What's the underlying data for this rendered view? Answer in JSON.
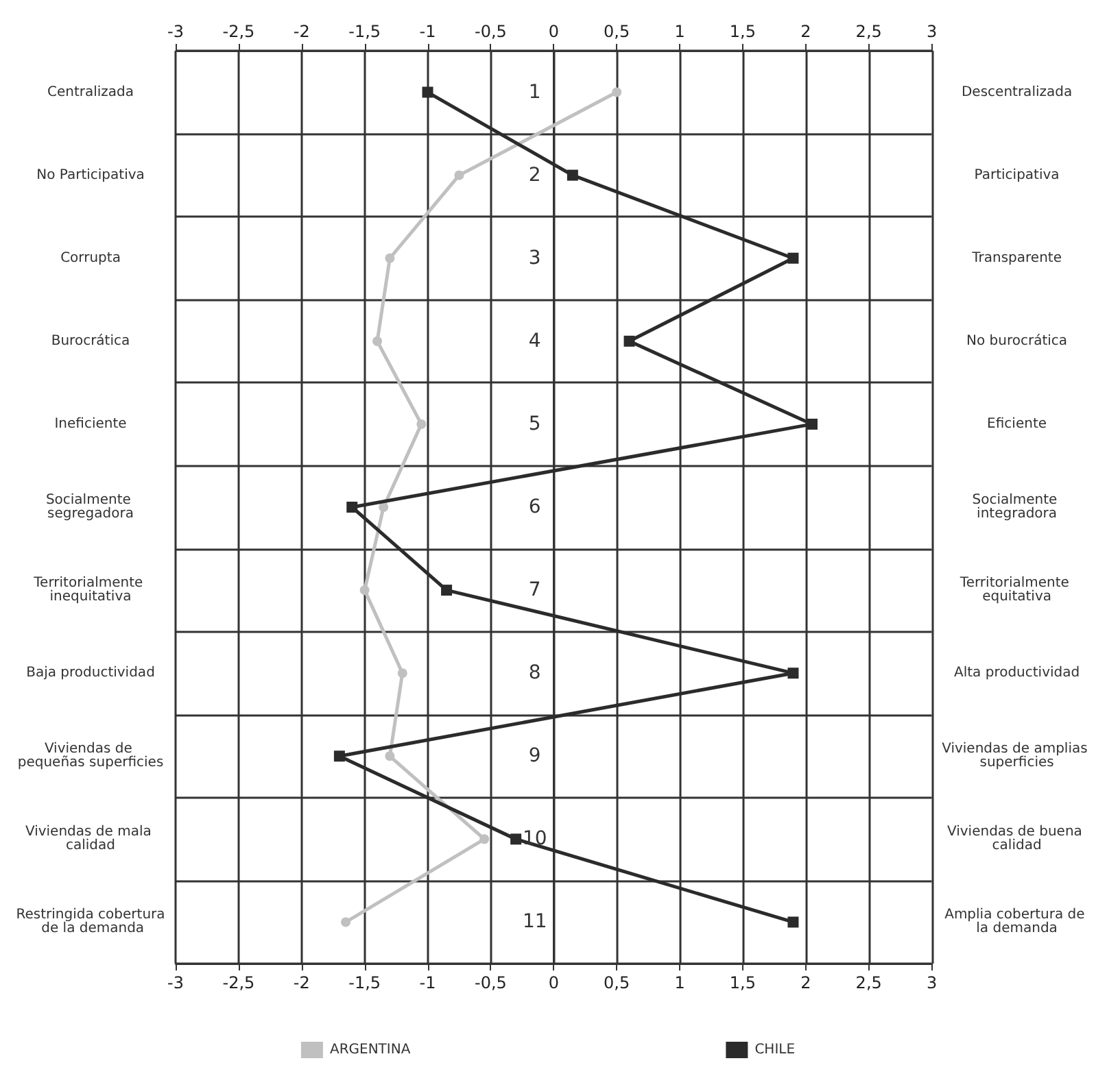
{
  "chart_data": {
    "type": "line",
    "orientation": "horizontal",
    "categories": [
      "Centralizada",
      "No Participativa",
      "Corrupta",
      "Burocrática",
      "Ineficiente",
      "Socialmente segregadora",
      "Territorialmente inequitativa",
      "Baja productividad",
      "Viviendas de pequeñas superficies",
      "Viviendas de mala calidad",
      "Restringida cobertura de la demanda"
    ],
    "y2_categories": [
      "Descentralizada",
      "Participativa",
      "Transparente",
      "No burocrática",
      "Eficiente",
      "Socialmente integradora",
      "Territorialmente equitativa",
      "Alta productividad",
      "Viviendas de amplias superficies",
      "Viviendas de buena calidad",
      "Amplia cobertura de la demanda"
    ],
    "series": [
      {
        "name": "ARGENTINA",
        "color": "#c0c0c0",
        "marker": "circle",
        "values": [
          0.5,
          -0.75,
          -1.3,
          -1.4,
          -1.05,
          -1.35,
          -1.5,
          -1.2,
          -1.3,
          -0.55,
          -1.65
        ]
      },
      {
        "name": "CHILE",
        "color": "#2b2b2b",
        "marker": "square",
        "values": [
          -1,
          0.15,
          1.9,
          0.6,
          2.05,
          -1.6,
          -0.85,
          1.9,
          -1.7,
          -0.3,
          1.9
        ]
      }
    ],
    "xlim": [
      -3,
      3
    ],
    "xticks": [
      -3,
      {
        "value": -2.5,
        "label": "-2,5"
      },
      -2,
      {
        "value": -1.5,
        "label": "-1,5"
      },
      -1,
      {
        "value": -0.5,
        "label": "-0,5"
      },
      0,
      {
        "value": 0.5,
        "label": "0,5"
      },
      1,
      {
        "value": 1.5,
        "label": "1,5"
      },
      2,
      {
        "value": 2.5,
        "label": "2,5"
      },
      3
    ],
    "x2lim": [
      -3,
      3
    ],
    "x2ticks": [
      -3,
      {
        "value": -2.5,
        "label": "-2,5"
      },
      -2,
      {
        "value": -1.5,
        "label": "-1,5"
      },
      -1,
      {
        "value": -0.5,
        "label": "-0,5"
      },
      0,
      {
        "value": 0.5,
        "label": "0,5"
      },
      1,
      {
        "value": 1.5,
        "label": "1,5"
      },
      2,
      {
        "value": 2.5,
        "label": "2,5"
      },
      3
    ],
    "annotations": [
      "1",
      "2",
      "3",
      "4",
      "5",
      "6",
      "7",
      "8",
      "9",
      "10",
      "11"
    ],
    "grid": true,
    "legend": "bottom",
    "line_style": "solid"
  }
}
